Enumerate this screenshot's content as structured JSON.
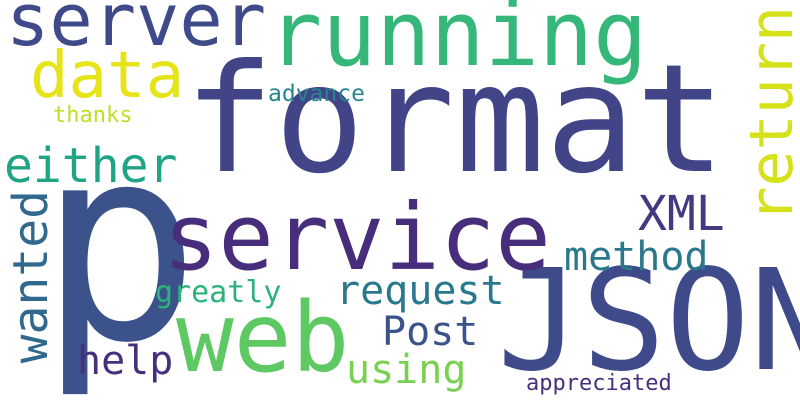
{
  "words": {
    "format": {
      "text": "format",
      "color": "#414487"
    },
    "p": {
      "text": "p",
      "color": "#3b528b"
    },
    "json": {
      "text": "JSON",
      "color": "#3e4a89"
    },
    "service": {
      "text": "service",
      "color": "#472d7b"
    },
    "running": {
      "text": "running",
      "color": "#35b779"
    },
    "web": {
      "text": "web",
      "color": "#5ec962"
    },
    "server": {
      "text": "server",
      "color": "#3e4a89"
    },
    "data": {
      "text": "data",
      "color": "#e6e419"
    },
    "return": {
      "text": "return",
      "color": "#d5e21a"
    },
    "either": {
      "text": "either",
      "color": "#20a486"
    },
    "wanted": {
      "text": "wanted",
      "color": "#31688e"
    },
    "xml": {
      "text": "XML",
      "color": "#443a83"
    },
    "request": {
      "text": "request",
      "color": "#29788e"
    },
    "method": {
      "text": "method",
      "color": "#2a788e"
    },
    "post": {
      "text": "Post",
      "color": "#3b528b"
    },
    "help": {
      "text": "help",
      "color": "#46307e"
    },
    "using": {
      "text": "using",
      "color": "#7ad151"
    },
    "greatly": {
      "text": "greatly",
      "color": "#2db27d"
    },
    "advance": {
      "text": "advance",
      "color": "#25858e"
    },
    "thanks": {
      "text": "thanks",
      "color": "#bddf26"
    },
    "appreciated": {
      "text": "appreciated",
      "color": "#46307e"
    }
  }
}
